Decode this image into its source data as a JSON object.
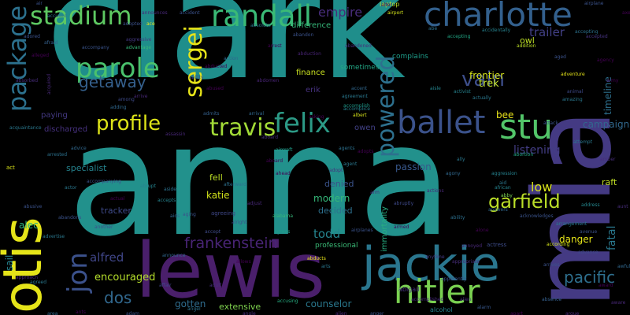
{
  "words": [
    {
      "text": "clark",
      "color": "#1f8e8b"
    },
    {
      "text": "anna",
      "color": "#22918c"
    },
    {
      "text": "mia",
      "color": "#443a83"
    },
    {
      "text": "otis",
      "color": "#e5e419"
    },
    {
      "text": "lewis",
      "color": "#4a1f6b"
    },
    {
      "text": "jackie",
      "color": "#2a768e"
    },
    {
      "text": "charlotte",
      "color": "#33608d"
    },
    {
      "text": "randall",
      "color": "#3aba76"
    },
    {
      "text": "stadium",
      "color": "#5ec962"
    },
    {
      "text": "package",
      "color": "#2c718e"
    },
    {
      "text": "parole",
      "color": "#4ac16d"
    },
    {
      "text": "sergei",
      "color": "#e7e419"
    },
    {
      "text": "powered",
      "color": "#2d708e"
    },
    {
      "text": "ballet",
      "color": "#3b528b"
    },
    {
      "text": "stu",
      "color": "#52c569"
    },
    {
      "text": "felix",
      "color": "#2c9a86"
    },
    {
      "text": "travis",
      "color": "#a2da37"
    },
    {
      "text": "profile",
      "color": "#dde318"
    },
    {
      "text": "hitler",
      "color": "#7ad151"
    },
    {
      "text": "jon",
      "color": "#3b518b"
    },
    {
      "text": "garfield",
      "color": "#bade28"
    },
    {
      "text": "vain",
      "color": "#3d4e8a"
    },
    {
      "text": "getaway",
      "color": "#35608d"
    },
    {
      "text": "frankenstein",
      "color": "#482475"
    },
    {
      "text": "pacific",
      "color": "#2e6f8e"
    },
    {
      "text": "empire",
      "color": "#472d7b"
    },
    {
      "text": "trailer",
      "color": "#424086"
    },
    {
      "text": "alfred",
      "color": "#404688"
    },
    {
      "text": "dos",
      "color": "#31688e"
    },
    {
      "text": "encouraged",
      "color": "#b5de2b"
    },
    {
      "text": "fatal",
      "color": "#2a788e"
    },
    {
      "text": "campaign",
      "color": "#31688e"
    },
    {
      "text": "todd",
      "color": "#25848e"
    },
    {
      "text": "low",
      "color": "#d8e219"
    },
    {
      "text": "frontier",
      "color": "#d5e21a"
    },
    {
      "text": "trek",
      "color": "#c2df23"
    },
    {
      "text": "timeline",
      "color": "#2d708e"
    },
    {
      "text": "listening",
      "color": "#433d84"
    },
    {
      "text": "danger",
      "color": "#e5e419"
    },
    {
      "text": "passion",
      "color": "#38588c"
    },
    {
      "text": "katie",
      "color": "#d2e21b"
    },
    {
      "text": "modern",
      "color": "#35b779"
    },
    {
      "text": "decided",
      "color": "#2d708e"
    },
    {
      "text": "specialist",
      "color": "#25838e"
    },
    {
      "text": "alec",
      "color": "#2db27d"
    },
    {
      "text": "gotten",
      "color": "#2f6c8e"
    },
    {
      "text": "extensive",
      "color": "#7fd34e"
    },
    {
      "text": "counselor",
      "color": "#2a788e"
    },
    {
      "text": "tracker",
      "color": "#3e4a89"
    },
    {
      "text": "professional",
      "color": "#3aba76"
    },
    {
      "text": "immortality",
      "color": "#27ad81"
    },
    {
      "text": "finance",
      "color": "#c8e020"
    },
    {
      "text": "difference",
      "color": "#35b779"
    },
    {
      "text": "erik",
      "color": "#46317e"
    },
    {
      "text": "owen",
      "color": "#424186"
    },
    {
      "text": "sometimes",
      "color": "#22a785"
    },
    {
      "text": "bee",
      "color": "#eae51a"
    },
    {
      "text": "fell",
      "color": "#bddf26"
    },
    {
      "text": "denied",
      "color": "#3a538b"
    },
    {
      "text": "sail",
      "color": "#26828e"
    },
    {
      "text": "raft",
      "color": "#c0df25"
    },
    {
      "text": "paying",
      "color": "#443983"
    },
    {
      "text": "discharged",
      "color": "#46317e"
    },
    {
      "text": "complains",
      "color": "#1e9c89"
    },
    {
      "text": "laptop",
      "color": "#b8de29"
    },
    {
      "text": "owl",
      "color": "#bddf26"
    },
    {
      "text": "abigail",
      "color": "#46307e"
    },
    {
      "text": "alcohol",
      "color": "#26828e"
    },
    {
      "text": "agreeing",
      "color": "#3f4889"
    },
    {
      "text": "accusing",
      "color": "#27ad81"
    },
    {
      "text": "agreed",
      "color": "#2a788e"
    },
    {
      "text": "according",
      "color": "#d2e21b"
    },
    {
      "text": "actress",
      "color": "#3e4c8a"
    },
    {
      "text": "adventure",
      "color": "#e5e419"
    },
    {
      "text": "address",
      "color": "#24878e"
    },
    {
      "text": "abducts",
      "color": "#eae51a"
    },
    {
      "text": "actor",
      "color": "#2a788e"
    },
    {
      "text": "action",
      "color": "#31688e"
    },
    {
      "text": "actual",
      "color": "#440154"
    },
    {
      "text": "accept",
      "color": "#3e4a89"
    },
    {
      "text": "accepts",
      "color": "#25848e"
    },
    {
      "text": "african",
      "color": "#26828e"
    },
    {
      "text": "alarm",
      "color": "#38588c"
    },
    {
      "text": "airport",
      "color": "#d2e21b"
    },
    {
      "text": "agent",
      "color": "#2a788e"
    },
    {
      "text": "act",
      "color": "#d8e219"
    },
    {
      "text": "acquired",
      "color": "#482878"
    },
    {
      "text": "abduction",
      "color": "#482475"
    },
    {
      "text": "abandon",
      "color": "#3b528b"
    },
    {
      "text": "activist",
      "color": "#26828e"
    },
    {
      "text": "actually",
      "color": "#2a788e"
    },
    {
      "text": "accepted",
      "color": "#46337f"
    },
    {
      "text": "accepting",
      "color": "#22a785"
    },
    {
      "text": "airplane",
      "color": "#3b528b"
    },
    {
      "text": "agency",
      "color": "#440154"
    },
    {
      "text": "addition",
      "color": "#bddf26"
    },
    {
      "text": "abruptly",
      "color": "#3e4989"
    },
    {
      "text": "acquaintance",
      "color": "#2a788e"
    },
    {
      "text": "advantage",
      "color": "#35b779"
    },
    {
      "text": "aggressive",
      "color": "#443983"
    },
    {
      "text": "accompany",
      "color": "#3a548c"
    },
    {
      "text": "accompanying",
      "color": "#3b518b"
    },
    {
      "text": "accidentally",
      "color": "#26828e"
    },
    {
      "text": "accomplish",
      "color": "#1f9a8a"
    },
    {
      "text": "afraid",
      "color": "#35608d"
    },
    {
      "text": "aboard",
      "color": "#46327e"
    },
    {
      "text": "aircraft",
      "color": "#1f9e89"
    },
    {
      "text": "assassin",
      "color": "#482777"
    },
    {
      "text": "among",
      "color": "#3e4a89"
    },
    {
      "text": "admits",
      "color": "#35608d"
    },
    {
      "text": "accomplice",
      "color": "#26828e"
    },
    {
      "text": "adopted",
      "color": "#3b528b"
    },
    {
      "text": "aisle",
      "color": "#25858e"
    },
    {
      "text": "aside",
      "color": "#2c718e"
    },
    {
      "text": "afterward",
      "color": "#2d708e"
    },
    {
      "text": "adopt",
      "color": "#46317e"
    },
    {
      "text": "albert",
      "color": "#d5e21a"
    },
    {
      "text": "acknowledges",
      "color": "#3a538b"
    },
    {
      "text": "adopts",
      "color": "#440154"
    },
    {
      "text": "aggression",
      "color": "#26828e"
    },
    {
      "text": "abortion",
      "color": "#22a785"
    },
    {
      "text": "abby",
      "color": "#7ad151"
    },
    {
      "text": "abe",
      "color": "#2d708e"
    },
    {
      "text": "ace",
      "color": "#e5e419"
    },
    {
      "text": "air",
      "color": "#3b528b"
    },
    {
      "text": "abdomen",
      "color": "#482475"
    },
    {
      "text": "arrive",
      "color": "#482878"
    },
    {
      "text": "affair",
      "color": "#404688"
    },
    {
      "text": "agents",
      "color": "#2c718e"
    },
    {
      "text": "ahead",
      "color": "#440154"
    },
    {
      "text": "absolute",
      "color": "#2a788e"
    },
    {
      "text": "advance",
      "color": "#3e4a89"
    },
    {
      "text": "aboard",
      "color": "#440154"
    },
    {
      "text": "advertise",
      "color": "#2a788e"
    },
    {
      "text": "abrupt",
      "color": "#25838e"
    },
    {
      "text": "abandons",
      "color": "#3b528b"
    },
    {
      "text": "announce",
      "color": "#31688e"
    },
    {
      "text": "anytime",
      "color": "#443983"
    },
    {
      "text": "alien",
      "color": "#472d7b"
    },
    {
      "text": "alabama",
      "color": "#35b779"
    },
    {
      "text": "aging",
      "color": "#3b528b"
    },
    {
      "text": "arrested",
      "color": "#2c718e"
    },
    {
      "text": "advice",
      "color": "#31688e"
    },
    {
      "text": "adjust",
      "color": "#482878"
    },
    {
      "text": "alone",
      "color": "#440154"
    },
    {
      "text": "amazing",
      "color": "#2a788e"
    },
    {
      "text": "animal",
      "color": "#3e4a89"
    },
    {
      "text": "arrangement",
      "color": "#2a788e"
    },
    {
      "text": "adult",
      "color": "#472d7b"
    },
    {
      "text": "alright",
      "color": "#3b528b"
    },
    {
      "text": "agrees",
      "color": "#1f9e89"
    },
    {
      "text": "armed",
      "color": "#440154"
    },
    {
      "text": "answers",
      "color": "#31688e"
    },
    {
      "text": "actions",
      "color": "#482878"
    },
    {
      "text": "ability",
      "color": "#2d708e"
    },
    {
      "text": "accomplished",
      "color": "#472d7b"
    },
    {
      "text": "arrives",
      "color": "#3b528b"
    },
    {
      "text": "absence",
      "color": "#35608d"
    },
    {
      "text": "aid",
      "color": "#2a788e"
    },
    {
      "text": "airplanes",
      "color": "#3b528b"
    },
    {
      "text": "abused",
      "color": "#440154"
    },
    {
      "text": "appropriate",
      "color": "#472d7b"
    },
    {
      "text": "apparently",
      "color": "#3b528b"
    },
    {
      "text": "annoyed",
      "color": "#482878"
    },
    {
      "text": "adding",
      "color": "#31688e"
    },
    {
      "text": "accused",
      "color": "#2c718e"
    },
    {
      "text": "ability",
      "color": "#3e4a89"
    },
    {
      "text": "abducted",
      "color": "#440154"
    },
    {
      "text": "abandoned",
      "color": "#472d7b"
    },
    {
      "text": "accent",
      "color": "#31688e"
    },
    {
      "text": "agreement",
      "color": "#2a788e"
    },
    {
      "text": "accident",
      "color": "#3b528b"
    },
    {
      "text": "announces",
      "color": "#482878"
    },
    {
      "text": "arrest",
      "color": "#440154"
    },
    {
      "text": "accepting",
      "color": "#2c718e"
    },
    {
      "text": "absorbed",
      "color": "#472d7b"
    },
    {
      "text": "abusive",
      "color": "#3b528b"
    },
    {
      "text": "aids",
      "color": "#31688e"
    },
    {
      "text": "allows",
      "color": "#440154"
    },
    {
      "text": "arts",
      "color": "#2a788e"
    },
    {
      "text": "adam",
      "color": "#3b528b"
    },
    {
      "text": "alien",
      "color": "#482878"
    },
    {
      "text": "alter",
      "color": "#440154"
    },
    {
      "text": "amber",
      "color": "#472d7b"
    },
    {
      "text": "another",
      "color": "#3b528b"
    },
    {
      "text": "agony",
      "color": "#31688e"
    },
    {
      "text": "ants",
      "color": "#440154"
    },
    {
      "text": "angel",
      "color": "#2c718e"
    },
    {
      "text": "angle",
      "color": "#472d7b"
    },
    {
      "text": "anger",
      "color": "#3b528b"
    },
    {
      "text": "apart",
      "color": "#440154"
    },
    {
      "text": "argue",
      "color": "#482878"
    },
    {
      "text": "area",
      "color": "#31688e"
    },
    {
      "text": "army",
      "color": "#440154"
    },
    {
      "text": "aged",
      "color": "#3b528b"
    },
    {
      "text": "ally",
      "color": "#2a788e"
    },
    {
      "text": "arm",
      "color": "#472d7b"
    },
    {
      "text": "adored",
      "color": "#3b528b"
    },
    {
      "text": "alleged",
      "color": "#440154"
    },
    {
      "text": "approach",
      "color": "#482878"
    },
    {
      "text": "arrival",
      "color": "#31688e"
    },
    {
      "text": "asking",
      "color": "#440154"
    },
    {
      "text": "attack",
      "color": "#3b528b"
    },
    {
      "text": "attempt",
      "color": "#2a788e"
    },
    {
      "text": "aunt",
      "color": "#472d7b"
    },
    {
      "text": "avenue",
      "color": "#3b528b"
    },
    {
      "text": "award",
      "color": "#440154"
    },
    {
      "text": "aware",
      "color": "#482878"
    },
    {
      "text": "awful",
      "color": "#31688e"
    },
    {
      "text": "axe",
      "color": "#440154"
    }
  ]
}
